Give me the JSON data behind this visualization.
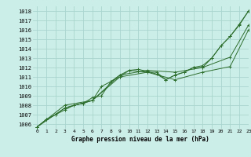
{
  "title": "Graphe pression niveau de la mer (hPa)",
  "background_color": "#cceee8",
  "grid_color": "#aad4ce",
  "line_color": "#2d6e2d",
  "xlim": [
    -0.5,
    23
  ],
  "ylim": [
    1005.5,
    1018.5
  ],
  "yticks": [
    1006,
    1007,
    1008,
    1009,
    1010,
    1011,
    1012,
    1013,
    1014,
    1015,
    1016,
    1017,
    1018
  ],
  "xticks": [
    0,
    1,
    2,
    3,
    4,
    5,
    6,
    7,
    8,
    9,
    10,
    11,
    12,
    13,
    14,
    15,
    16,
    17,
    18,
    19,
    20,
    21,
    22,
    23
  ],
  "series": [
    {
      "x": [
        0,
        1,
        2,
        3,
        4,
        5,
        6,
        7,
        8,
        9,
        10,
        11,
        12,
        13,
        14,
        15,
        16,
        17,
        18,
        19,
        20,
        21,
        22,
        23
      ],
      "y": [
        1005.7,
        1006.5,
        1007.0,
        1007.5,
        1008.0,
        1008.2,
        1008.5,
        1010.0,
        1010.5,
        1011.0,
        1011.7,
        1011.6,
        1011.5,
        1011.5,
        1010.7,
        1011.2,
        1011.5,
        1012.0,
        1012.0,
        1013.0,
        1014.3,
        1015.3,
        1016.5,
        1018.0
      ]
    },
    {
      "x": [
        0,
        1,
        2,
        3,
        4,
        5,
        6,
        7,
        8,
        9,
        10,
        11,
        12,
        13,
        14,
        15,
        16,
        17,
        18,
        19,
        20,
        21,
        22,
        23
      ],
      "y": [
        1005.7,
        1006.5,
        1007.0,
        1007.7,
        1008.0,
        1008.2,
        1008.8,
        1009.0,
        1010.5,
        1011.2,
        1011.7,
        1011.8,
        1011.6,
        1011.3,
        1010.7,
        1011.2,
        1011.5,
        1012.0,
        1012.2,
        1013.0,
        1014.3,
        1015.3,
        1016.6,
        1018.0
      ]
    },
    {
      "x": [
        0,
        3,
        6,
        9,
        12,
        15,
        18,
        21,
        23
      ],
      "y": [
        1005.7,
        1007.7,
        1008.5,
        1011.2,
        1011.7,
        1011.5,
        1012.0,
        1013.1,
        1016.5
      ]
    },
    {
      "x": [
        0,
        3,
        6,
        9,
        12,
        15,
        18,
        21,
        23
      ],
      "y": [
        1005.7,
        1008.0,
        1008.5,
        1011.0,
        1011.5,
        1010.7,
        1011.5,
        1012.1,
        1016.0
      ]
    }
  ]
}
